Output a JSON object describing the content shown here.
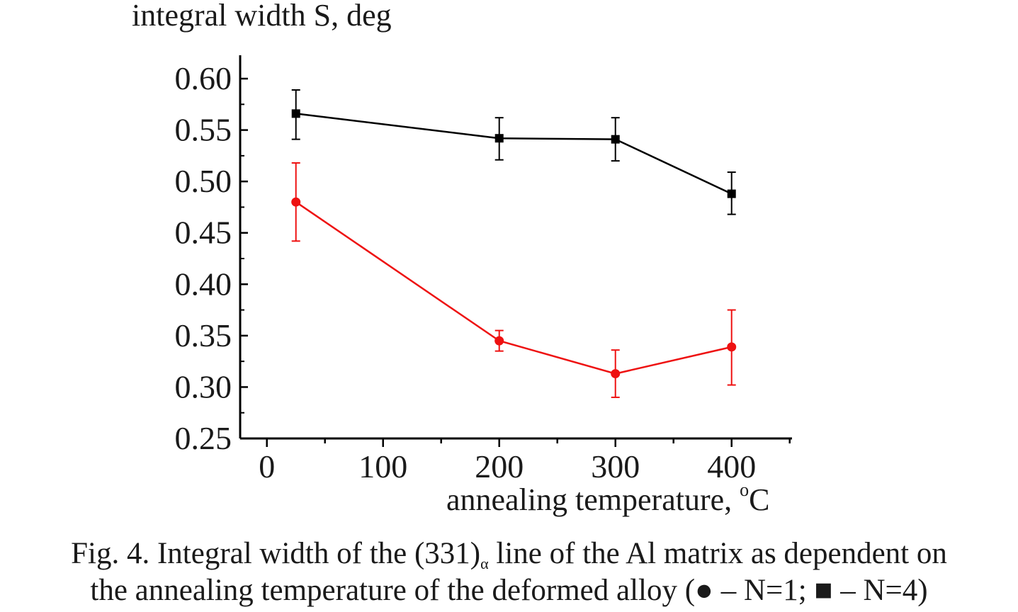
{
  "chart_data": {
    "type": "line",
    "ylabel": "integral width S, deg",
    "xlabel_text": "annealing temperature, ",
    "xlabel_unit_sup": "o",
    "xlabel_unit": "C",
    "xlim": [
      -23,
      452
    ],
    "ylim": [
      0.25,
      0.62
    ],
    "x_ticks": [
      0,
      100,
      200,
      300,
      400
    ],
    "x_tick_labels": [
      "0",
      "100",
      "200",
      "300",
      "400"
    ],
    "y_ticks": [
      0.25,
      0.3,
      0.35,
      0.4,
      0.45,
      0.5,
      0.55,
      0.6
    ],
    "y_tick_labels": [
      "0.25",
      "0.30",
      "0.35",
      "0.40",
      "0.45",
      "0.50",
      "0.55",
      "0.60"
    ],
    "grid": false,
    "series": [
      {
        "key": "N4",
        "marker": "square",
        "color": "#000000",
        "x": [
          25,
          200,
          300,
          400
        ],
        "y": [
          0.566,
          0.542,
          0.541,
          0.488
        ],
        "err_low": [
          0.541,
          0.521,
          0.52,
          0.468
        ],
        "err_high": [
          0.589,
          0.562,
          0.562,
          0.509
        ]
      },
      {
        "key": "N1",
        "marker": "circle",
        "color": "#ee1111",
        "x": [
          25,
          200,
          300,
          400
        ],
        "y": [
          0.48,
          0.345,
          0.313,
          0.339
        ],
        "err_low": [
          0.442,
          0.335,
          0.29,
          0.302
        ],
        "err_high": [
          0.518,
          0.355,
          0.336,
          0.375
        ]
      }
    ]
  },
  "caption": {
    "line1_pre": "Fig. 4. Integral width of the (331)",
    "line1_sub": "α",
    "line1_post": " line of the Al matrix as dependent on",
    "line2": "the annealing temperature of the deformed alloy (● – N=1; ■ – N=4)"
  }
}
